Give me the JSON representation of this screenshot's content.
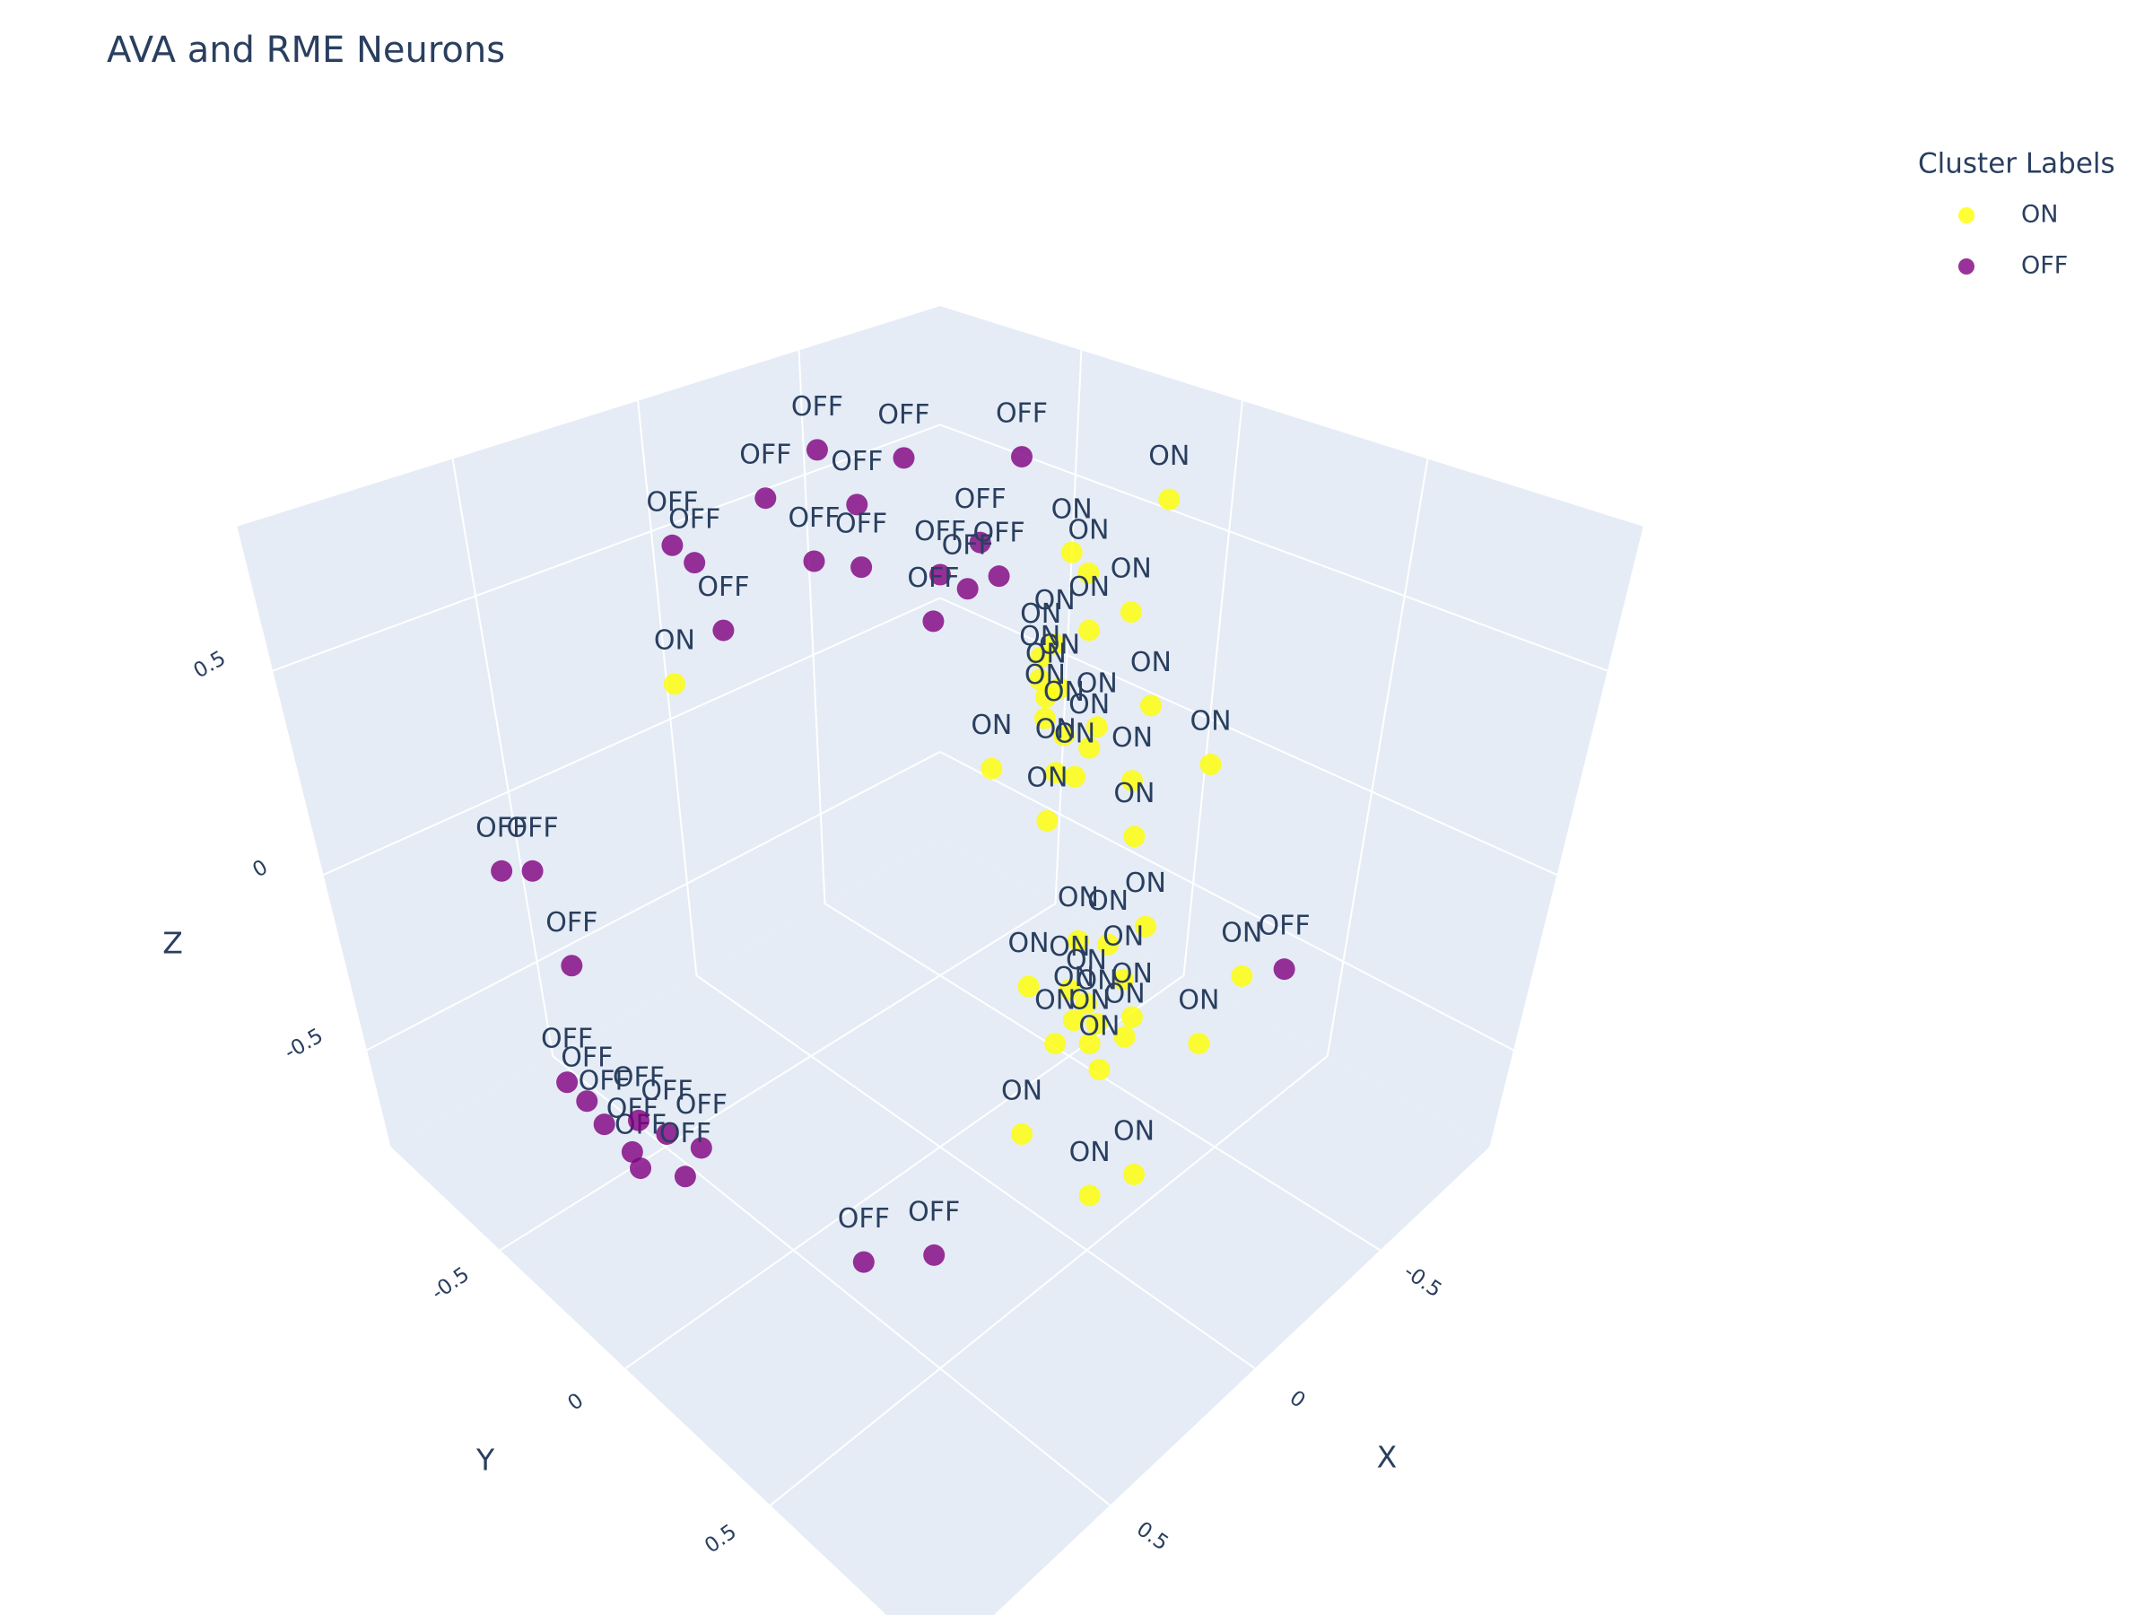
{
  "chart_data": {
    "type": "scatter3d",
    "title": "AVA and RME Neurons",
    "xlabel": "X",
    "ylabel": "Y",
    "zlabel": "Z",
    "xlim": [
      -1,
      1
    ],
    "ylim": [
      -1,
      1
    ],
    "zlim": [
      -0.81,
      0.81
    ],
    "xticks": [
      -0.5,
      0,
      0.5
    ],
    "yticks": [
      -0.5,
      0,
      0.5
    ],
    "zticks": [
      -0.5,
      0,
      0.5
    ],
    "grid": true,
    "legend": "top-right",
    "legend_title": "Cluster Labels",
    "marker_opacity": 0.8,
    "series": [
      {
        "name": "ON",
        "color": "#ffff00",
        "x": [
          -0.63,
          -0.27,
          -0.22,
          -0.28,
          -0.22,
          0.4,
          -0.17,
          -0.15,
          -0.15,
          -0.18,
          -0.16,
          -0.32,
          -0.24,
          -0.19,
          -0.16,
          -0.23,
          -0.42,
          -0.08,
          -0.18,
          -0.21,
          -0.3,
          -0.17,
          -0.31,
          -0.34,
          -0.23,
          -0.28,
          -0.31,
          -0.15,
          -0.22,
          -0.25,
          -0.23,
          -0.27,
          -0.33,
          -0.32,
          -0.2,
          -0.26,
          -0.28,
          -0.51,
          -0.45,
          -0.1,
          -0.19,
          -0.06
        ],
        "y": [
          0.09,
          0.12,
          0.21,
          0.28,
          0.22,
          -0.4,
          0.17,
          0.15,
          0.15,
          0.18,
          0.16,
          0.32,
          0.24,
          0.19,
          0.16,
          0.23,
          0.42,
          0.08,
          0.18,
          0.21,
          0.3,
          0.17,
          0.31,
          0.34,
          0.23,
          0.28,
          0.31,
          0.15,
          0.22,
          0.25,
          0.23,
          0.27,
          0.33,
          0.32,
          0.2,
          0.26,
          0.28,
          0.51,
          0.45,
          0.19,
          0.48,
          0.45
        ],
        "z": [
          0.71,
          0.71,
          0.71,
          0.63,
          0.59,
          0.47,
          0.56,
          0.53,
          0.48,
          0.46,
          0.44,
          0.42,
          0.37,
          0.35,
          0.39,
          0.32,
          0.28,
          0.27,
          0.26,
          0.25,
          0.24,
          0.14,
          0.1,
          -0.14,
          -0.18,
          -0.19,
          -0.29,
          -0.31,
          -0.32,
          -0.36,
          -0.41,
          -0.42,
          -0.4,
          -0.46,
          -0.48,
          -0.48,
          -0.56,
          -0.28,
          -0.48,
          -0.71,
          -0.71,
          -0.71
        ]
      },
      {
        "name": "OFF",
        "color": "#800080",
        "x": [
          -0.27,
          -0.38,
          -0.58,
          0.0,
          -0.12,
          0.3,
          0.32,
          0.14,
          0.09,
          -0.17,
          -0.08,
          0.0,
          -0.04,
          0.01,
          0.32,
          0.71,
          0.66,
          0.62,
          0.66,
          0.63,
          0.62,
          0.63,
          0.65,
          0.55,
          0.53,
          0.5,
          0.59,
          0.47,
          0.34,
          -0.58
        ],
        "y": [
          -0.68,
          -0.5,
          -0.31,
          -0.55,
          -0.38,
          -0.5,
          -0.4,
          -0.23,
          -0.14,
          -0.05,
          0.09,
          0.0,
          0.04,
          -0.01,
          -0.32,
          -0.71,
          -0.66,
          -0.62,
          -0.66,
          -0.63,
          -0.58,
          -0.45,
          -0.39,
          -0.53,
          -0.44,
          -0.34,
          -0.29,
          0.22,
          0.32,
          0.58
        ],
        "z": [
          0.71,
          0.71,
          0.71,
          0.71,
          0.71,
          0.71,
          0.71,
          0.71,
          0.71,
          0.71,
          0.71,
          0.71,
          0.68,
          0.61,
          0.59,
          0.01,
          0.01,
          -0.25,
          -0.6,
          -0.66,
          -0.71,
          -0.71,
          -0.71,
          -0.71,
          -0.71,
          -0.71,
          -0.71,
          -0.71,
          -0.71,
          -0.26
        ]
      }
    ]
  }
}
